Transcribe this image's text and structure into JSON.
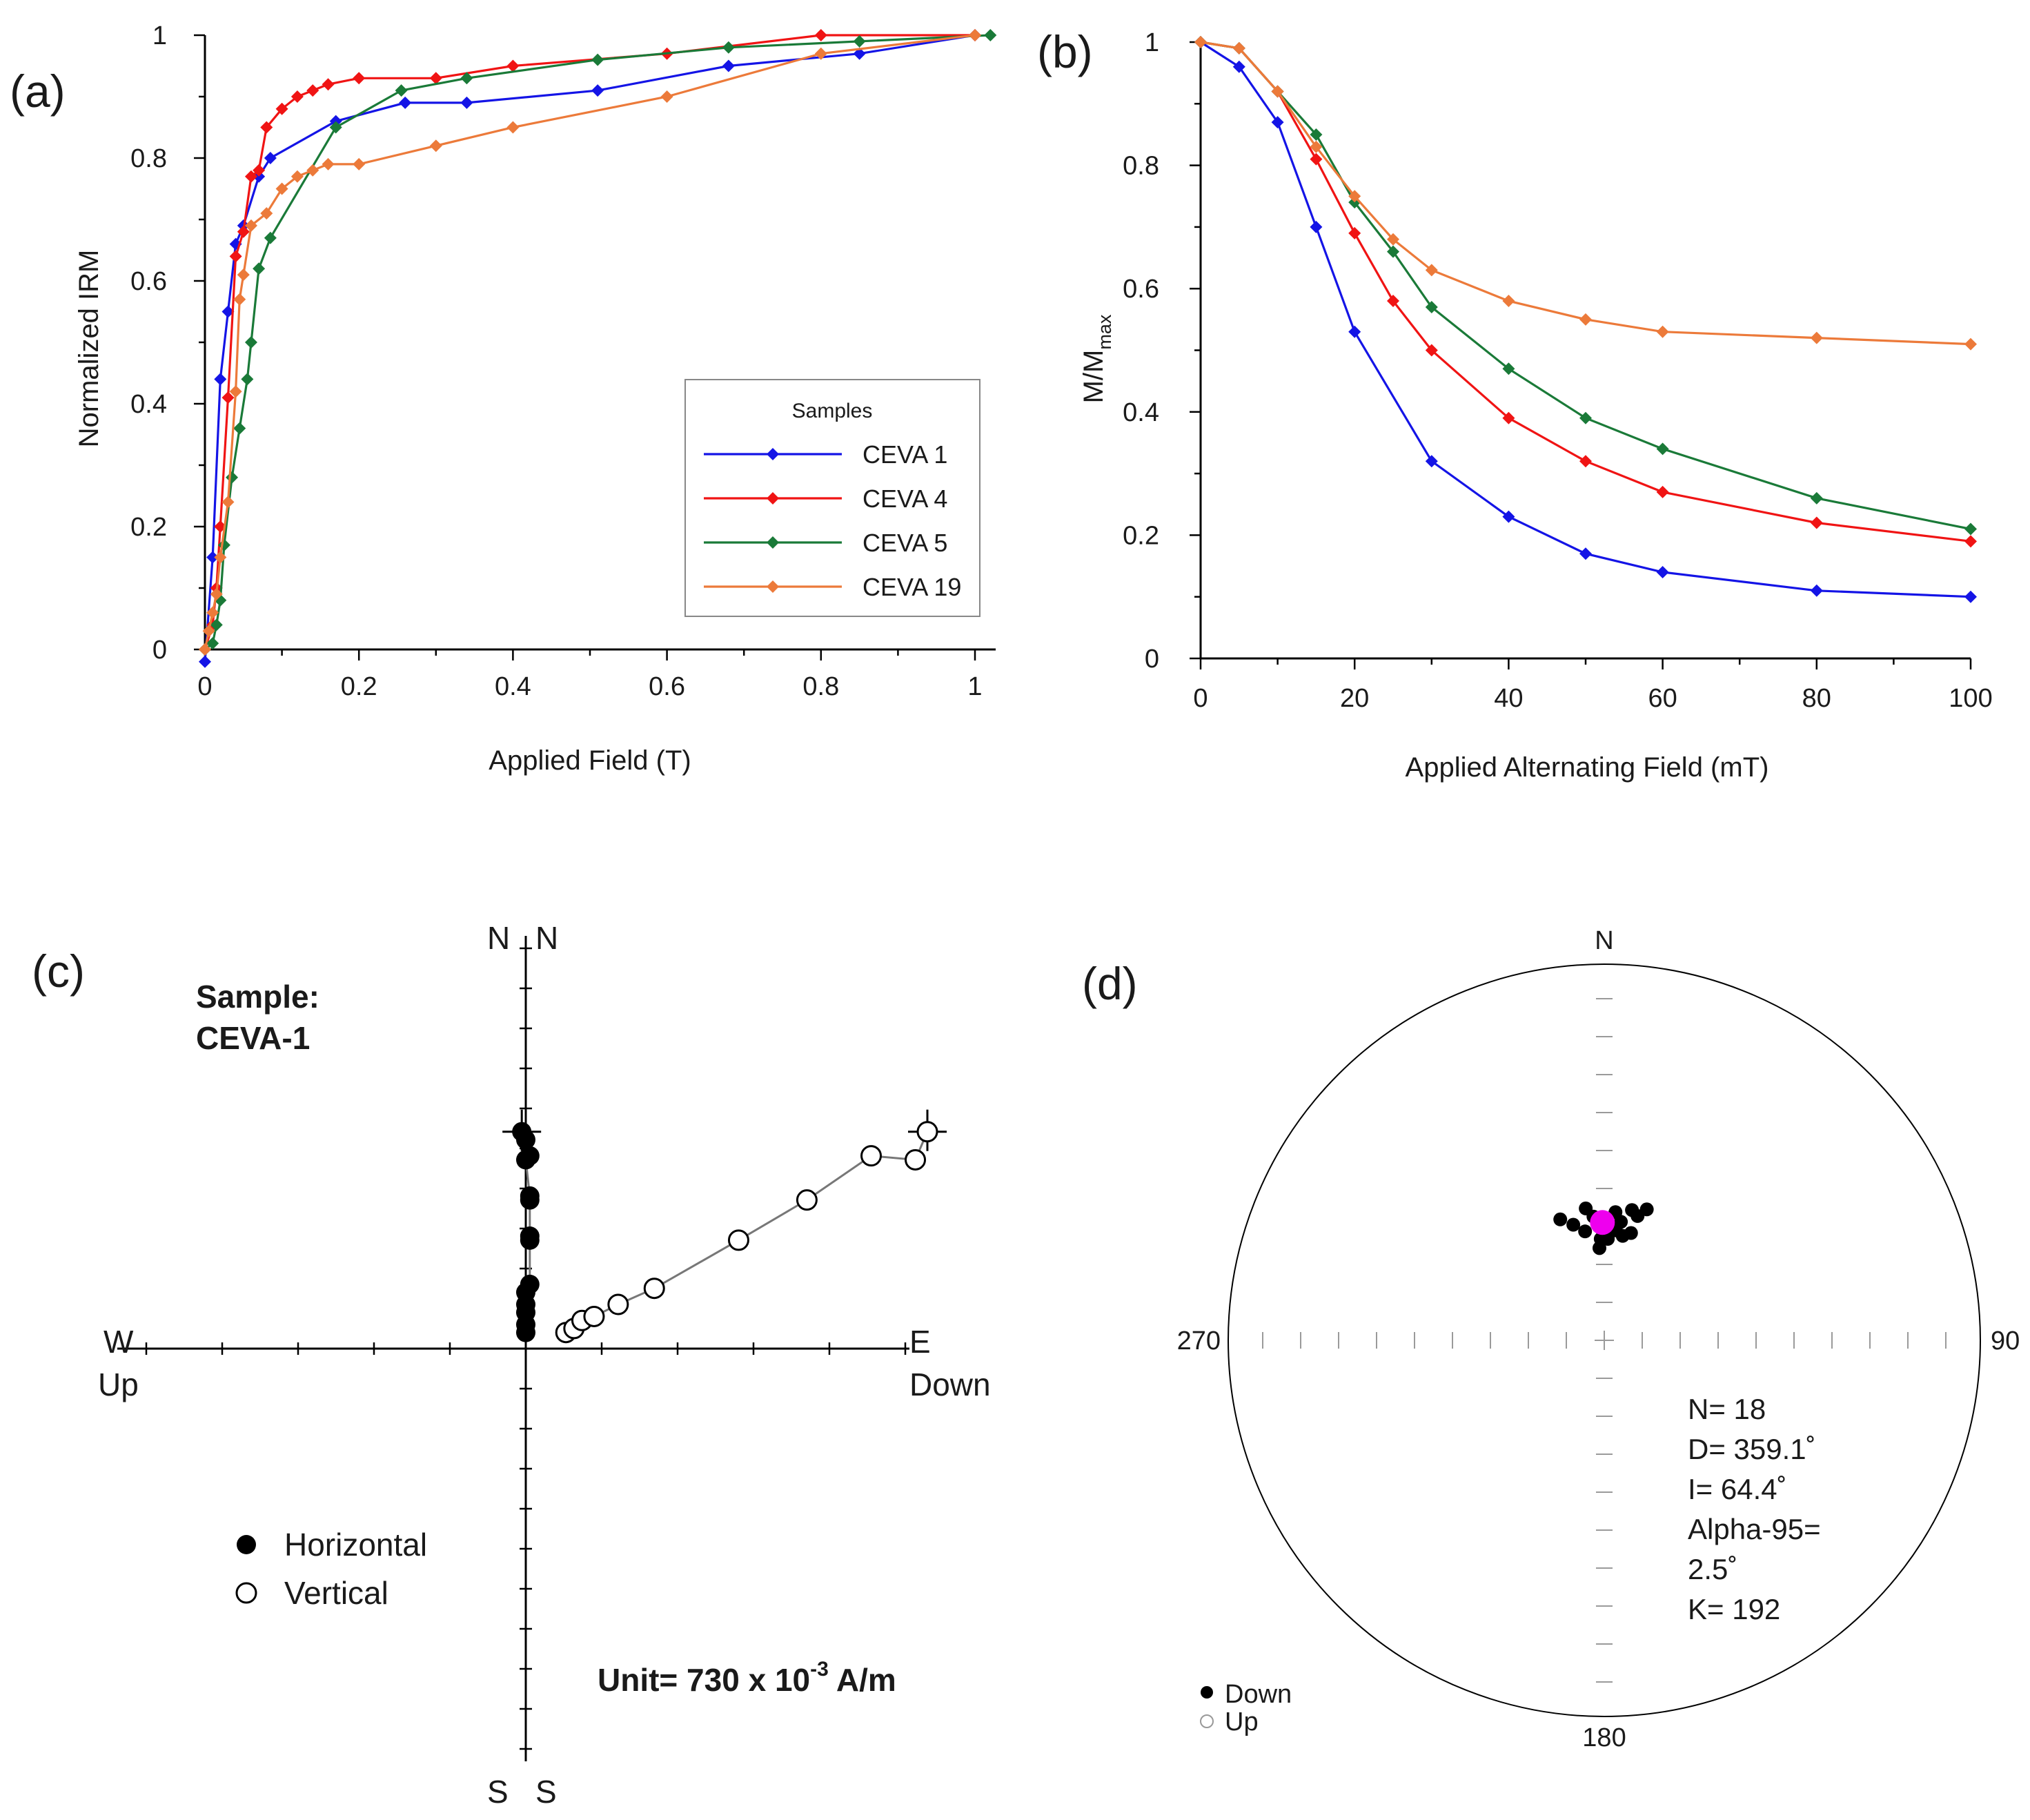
{
  "chart_data": [
    {
      "type": "line",
      "panel": "(a)",
      "xlabel": "Applied Field (T)",
      "ylabel": "Normalized IRM",
      "xlim": [
        0,
        1
      ],
      "ylim": [
        0,
        1
      ],
      "xticks": [
        "0",
        "0.2",
        "0.4",
        "0.6",
        "0.8",
        "1"
      ],
      "yticks": [
        "0",
        "0.2",
        "0.4",
        "0.6",
        "0.8",
        "1"
      ],
      "legend": {
        "title": "Samples",
        "position": "bottom-right"
      },
      "series": [
        {
          "name": "CEVA 1",
          "color": "#1414e6",
          "x": [
            0,
            0.01,
            0.02,
            0.03,
            0.04,
            0.05,
            0.07,
            0.085,
            0.17,
            0.26,
            0.34,
            0.51,
            0.68,
            0.85,
            1.0
          ],
          "y": [
            -0.02,
            0.15,
            0.44,
            0.55,
            0.66,
            0.69,
            0.77,
            0.8,
            0.86,
            0.89,
            0.89,
            0.91,
            0.95,
            0.97,
            1.0
          ]
        },
        {
          "name": "CEVA 4",
          "color": "#f01414",
          "x": [
            0,
            0.01,
            0.015,
            0.02,
            0.03,
            0.04,
            0.05,
            0.06,
            0.07,
            0.08,
            0.1,
            0.12,
            0.14,
            0.16,
            0.2,
            0.3,
            0.4,
            0.6,
            0.8,
            1.0
          ],
          "y": [
            0,
            0.04,
            0.1,
            0.2,
            0.41,
            0.64,
            0.68,
            0.77,
            0.78,
            0.85,
            0.88,
            0.9,
            0.91,
            0.92,
            0.93,
            0.93,
            0.95,
            0.97,
            1.0,
            1.0
          ],
          "markers": [
            0,
            0.01,
            0.015,
            0.02,
            0.03,
            0.04,
            0.05,
            0.06,
            0.07,
            0.08,
            0.1,
            0.12,
            0.14,
            0.16,
            0.2,
            0.3,
            0.4,
            0.6,
            0.8,
            1.0
          ]
        },
        {
          "name": "CEVA 5",
          "color": "#1a7a38",
          "x": [
            0,
            0.01,
            0.015,
            0.02,
            0.025,
            0.035,
            0.045,
            0.055,
            0.06,
            0.07,
            0.085,
            0.17,
            0.255,
            0.34,
            0.51,
            0.68,
            0.85,
            1.02
          ],
          "y": [
            0,
            0.01,
            0.04,
            0.08,
            0.17,
            0.28,
            0.36,
            0.44,
            0.5,
            0.62,
            0.67,
            0.85,
            0.91,
            0.93,
            0.96,
            0.98,
            0.99,
            1.0
          ]
        },
        {
          "name": "CEVA 19",
          "color": "#ec7a3a",
          "x": [
            0,
            0.005,
            0.01,
            0.015,
            0.02,
            0.03,
            0.04,
            0.045,
            0.05,
            0.06,
            0.08,
            0.1,
            0.12,
            0.14,
            0.16,
            0.2,
            0.3,
            0.4,
            0.6,
            0.8,
            1.0
          ],
          "y": [
            0,
            0.03,
            0.06,
            0.09,
            0.15,
            0.24,
            0.42,
            0.57,
            0.61,
            0.69,
            0.71,
            0.75,
            0.77,
            0.78,
            0.79,
            0.79,
            0.82,
            0.85,
            0.9,
            0.97,
            1.0
          ]
        }
      ]
    },
    {
      "type": "line",
      "panel": "(b)",
      "xlabel": "Applied Alternating Field (mT)",
      "ylabel": "M/M",
      "ylabel_sub": "max",
      "xlim": [
        0,
        100
      ],
      "ylim": [
        0,
        1
      ],
      "xticks": [
        "0",
        "20",
        "40",
        "60",
        "80",
        "100"
      ],
      "yticks": [
        "0",
        "0.2",
        "0.4",
        "0.6",
        "0.8",
        "1"
      ],
      "series": [
        {
          "name": "CEVA 1",
          "color": "#1414e6",
          "x": [
            0,
            5,
            10,
            15,
            20,
            30,
            40,
            50,
            60,
            80,
            100
          ],
          "y": [
            1.0,
            0.96,
            0.87,
            0.7,
            0.53,
            0.32,
            0.23,
            0.17,
            0.14,
            0.11,
            0.1
          ]
        },
        {
          "name": "CEVA 4",
          "color": "#f01414",
          "x": [
            0,
            5,
            10,
            15,
            20,
            25,
            30,
            40,
            50,
            60,
            80,
            100
          ],
          "y": [
            1.0,
            0.99,
            0.92,
            0.81,
            0.69,
            0.58,
            0.5,
            0.39,
            0.32,
            0.27,
            0.22,
            0.19
          ]
        },
        {
          "name": "CEVA 5",
          "color": "#1a7a38",
          "x": [
            0,
            5,
            10,
            15,
            20,
            25,
            30,
            40,
            50,
            60,
            80,
            100
          ],
          "y": [
            1.0,
            0.99,
            0.92,
            0.85,
            0.74,
            0.66,
            0.57,
            0.47,
            0.39,
            0.34,
            0.26,
            0.21
          ]
        },
        {
          "name": "CEVA 19",
          "color": "#ec7a3a",
          "x": [
            0,
            5,
            10,
            15,
            20,
            25,
            30,
            40,
            50,
            60,
            80,
            100
          ],
          "y": [
            1.0,
            0.99,
            0.92,
            0.83,
            0.75,
            0.68,
            0.63,
            0.58,
            0.55,
            0.53,
            0.52,
            0.51
          ]
        }
      ]
    },
    {
      "type": "scatter",
      "panel": "(c)",
      "title": "Sample:",
      "subtitle": "CEVA-1",
      "labels": {
        "top_left": "N",
        "top_right": "N",
        "bottom_left": "S",
        "bottom_right": "S",
        "left": "W",
        "left_sub": "Up",
        "right": "E",
        "right_sub": "Down"
      },
      "unit_label": "Unit=  730 x 10",
      "unit_exp": "-3",
      "unit_suffix": " A/m",
      "axis_range_units": 1,
      "legend": [
        {
          "name": "Horizontal",
          "marker": "filled-circle"
        },
        {
          "name": "Vertical",
          "marker": "open-circle"
        }
      ],
      "horizontal": [
        [
          -0.01,
          0.54
        ],
        [
          0.0,
          0.52
        ],
        [
          0.01,
          0.48
        ],
        [
          0.0,
          0.47
        ],
        [
          0.01,
          0.38
        ],
        [
          0.01,
          0.37
        ],
        [
          0.01,
          0.28
        ],
        [
          0.01,
          0.27
        ],
        [
          0.01,
          0.16
        ],
        [
          0.0,
          0.14
        ],
        [
          0.0,
          0.11
        ],
        [
          0.0,
          0.09
        ],
        [
          0.0,
          0.06
        ],
        [
          0.0,
          0.04
        ]
      ],
      "vertical": [
        [
          0.1,
          0.04
        ],
        [
          0.12,
          0.05
        ],
        [
          0.14,
          0.07
        ],
        [
          0.17,
          0.08
        ],
        [
          0.23,
          0.11
        ],
        [
          0.32,
          0.15
        ],
        [
          0.53,
          0.27
        ],
        [
          0.7,
          0.37
        ],
        [
          0.86,
          0.48
        ],
        [
          0.97,
          0.47
        ],
        [
          1.0,
          0.54
        ]
      ]
    },
    {
      "type": "scatter",
      "panel": "(d)",
      "projection": "equal-area stereonet",
      "labels": {
        "north": "N",
        "east": "90",
        "south": "180",
        "west": "270"
      },
      "legend": [
        {
          "name": "Down",
          "marker": "filled-circle"
        },
        {
          "name": "Up",
          "marker": "open-circle"
        }
      ],
      "stats": [
        "N= 18",
        "D= 359.1˚",
        "I= 64.4˚",
        "Alpha-95=",
        "2.5˚",
        "K= 192"
      ],
      "mean": {
        "declination": 359.1,
        "inclination": 64.4,
        "color": "#ee00ee"
      },
      "directions": [
        [
          350,
          66
        ],
        [
          5,
          62
        ],
        [
          358,
          68
        ],
        [
          12,
          61
        ],
        [
          18,
          60
        ],
        [
          355,
          63
        ],
        [
          1,
          66
        ],
        [
          8,
          64
        ],
        [
          352,
          61
        ],
        [
          2,
          68
        ],
        [
          15,
          62
        ],
        [
          0,
          64
        ],
        [
          345,
          64
        ],
        [
          6,
          66
        ],
        [
          357,
          70
        ],
        [
          14,
          66
        ],
        [
          10,
          67
        ],
        [
          -20,
          62
        ]
      ]
    }
  ]
}
